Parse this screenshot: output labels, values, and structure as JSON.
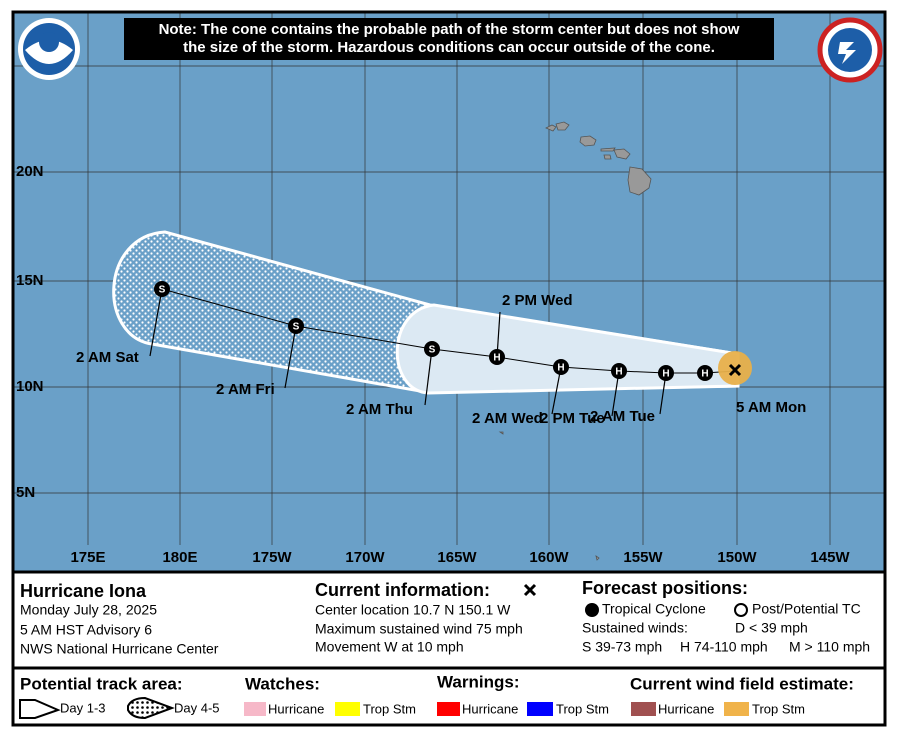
{
  "map": {
    "note": [
      "Note: The cone contains the probable path of the storm center but does not show",
      "the size of the storm. Hazardous conditions can occur outside of the cone."
    ],
    "lat_labels": [
      "20N",
      "15N",
      "10N",
      "5N"
    ],
    "lon_labels": [
      "175E",
      "180E",
      "175W",
      "170W",
      "165W",
      "160W",
      "155W",
      "150W",
      "145W"
    ],
    "current_label": "5 AM Mon",
    "forecast_points": [
      {
        "label": null,
        "symbol": "H"
      },
      {
        "label": "2 AM Tue",
        "symbol": "H"
      },
      {
        "label": "2 PM Tue",
        "symbol": "H"
      },
      {
        "label": "2 AM Wed",
        "symbol": "H"
      },
      {
        "label": "2 PM Wed",
        "symbol": "H"
      },
      {
        "label": "2 AM Thu",
        "symbol": "S"
      },
      {
        "label": "2 AM Fri",
        "symbol": "S"
      },
      {
        "label": "2 AM Sat",
        "symbol": "S"
      }
    ]
  },
  "storm": {
    "name": "Hurricane Iona",
    "lines": [
      "Monday July 28, 2025",
      "5 AM HST Advisory 6",
      "NWS National Hurricane Center"
    ]
  },
  "current": {
    "title": "Current information:",
    "lines": [
      "Center location 10.7 N 150.1 W",
      "Maximum sustained wind 75 mph",
      "Movement W at 10 mph"
    ]
  },
  "forecast_legend": {
    "title": "Forecast positions:",
    "tropical": "Tropical Cyclone",
    "post": "Post/Potential TC",
    "winds_title": "Sustained winds:",
    "winds": [
      "D < 39 mph",
      "S 39-73 mph",
      "H 74-110 mph",
      "M > 110 mph"
    ]
  },
  "legend": {
    "track_title": "Potential track area:",
    "day13": "Day 1-3",
    "day45": "Day 4-5",
    "watches_title": "Watches:",
    "watches": [
      "Hurricane",
      "Trop Stm"
    ],
    "warnings_title": "Warnings:",
    "warnings": [
      "Hurricane",
      "Trop Stm"
    ],
    "wind_title": "Current wind field estimate:",
    "wind": [
      "Hurricane",
      "Trop Stm"
    ]
  }
}
